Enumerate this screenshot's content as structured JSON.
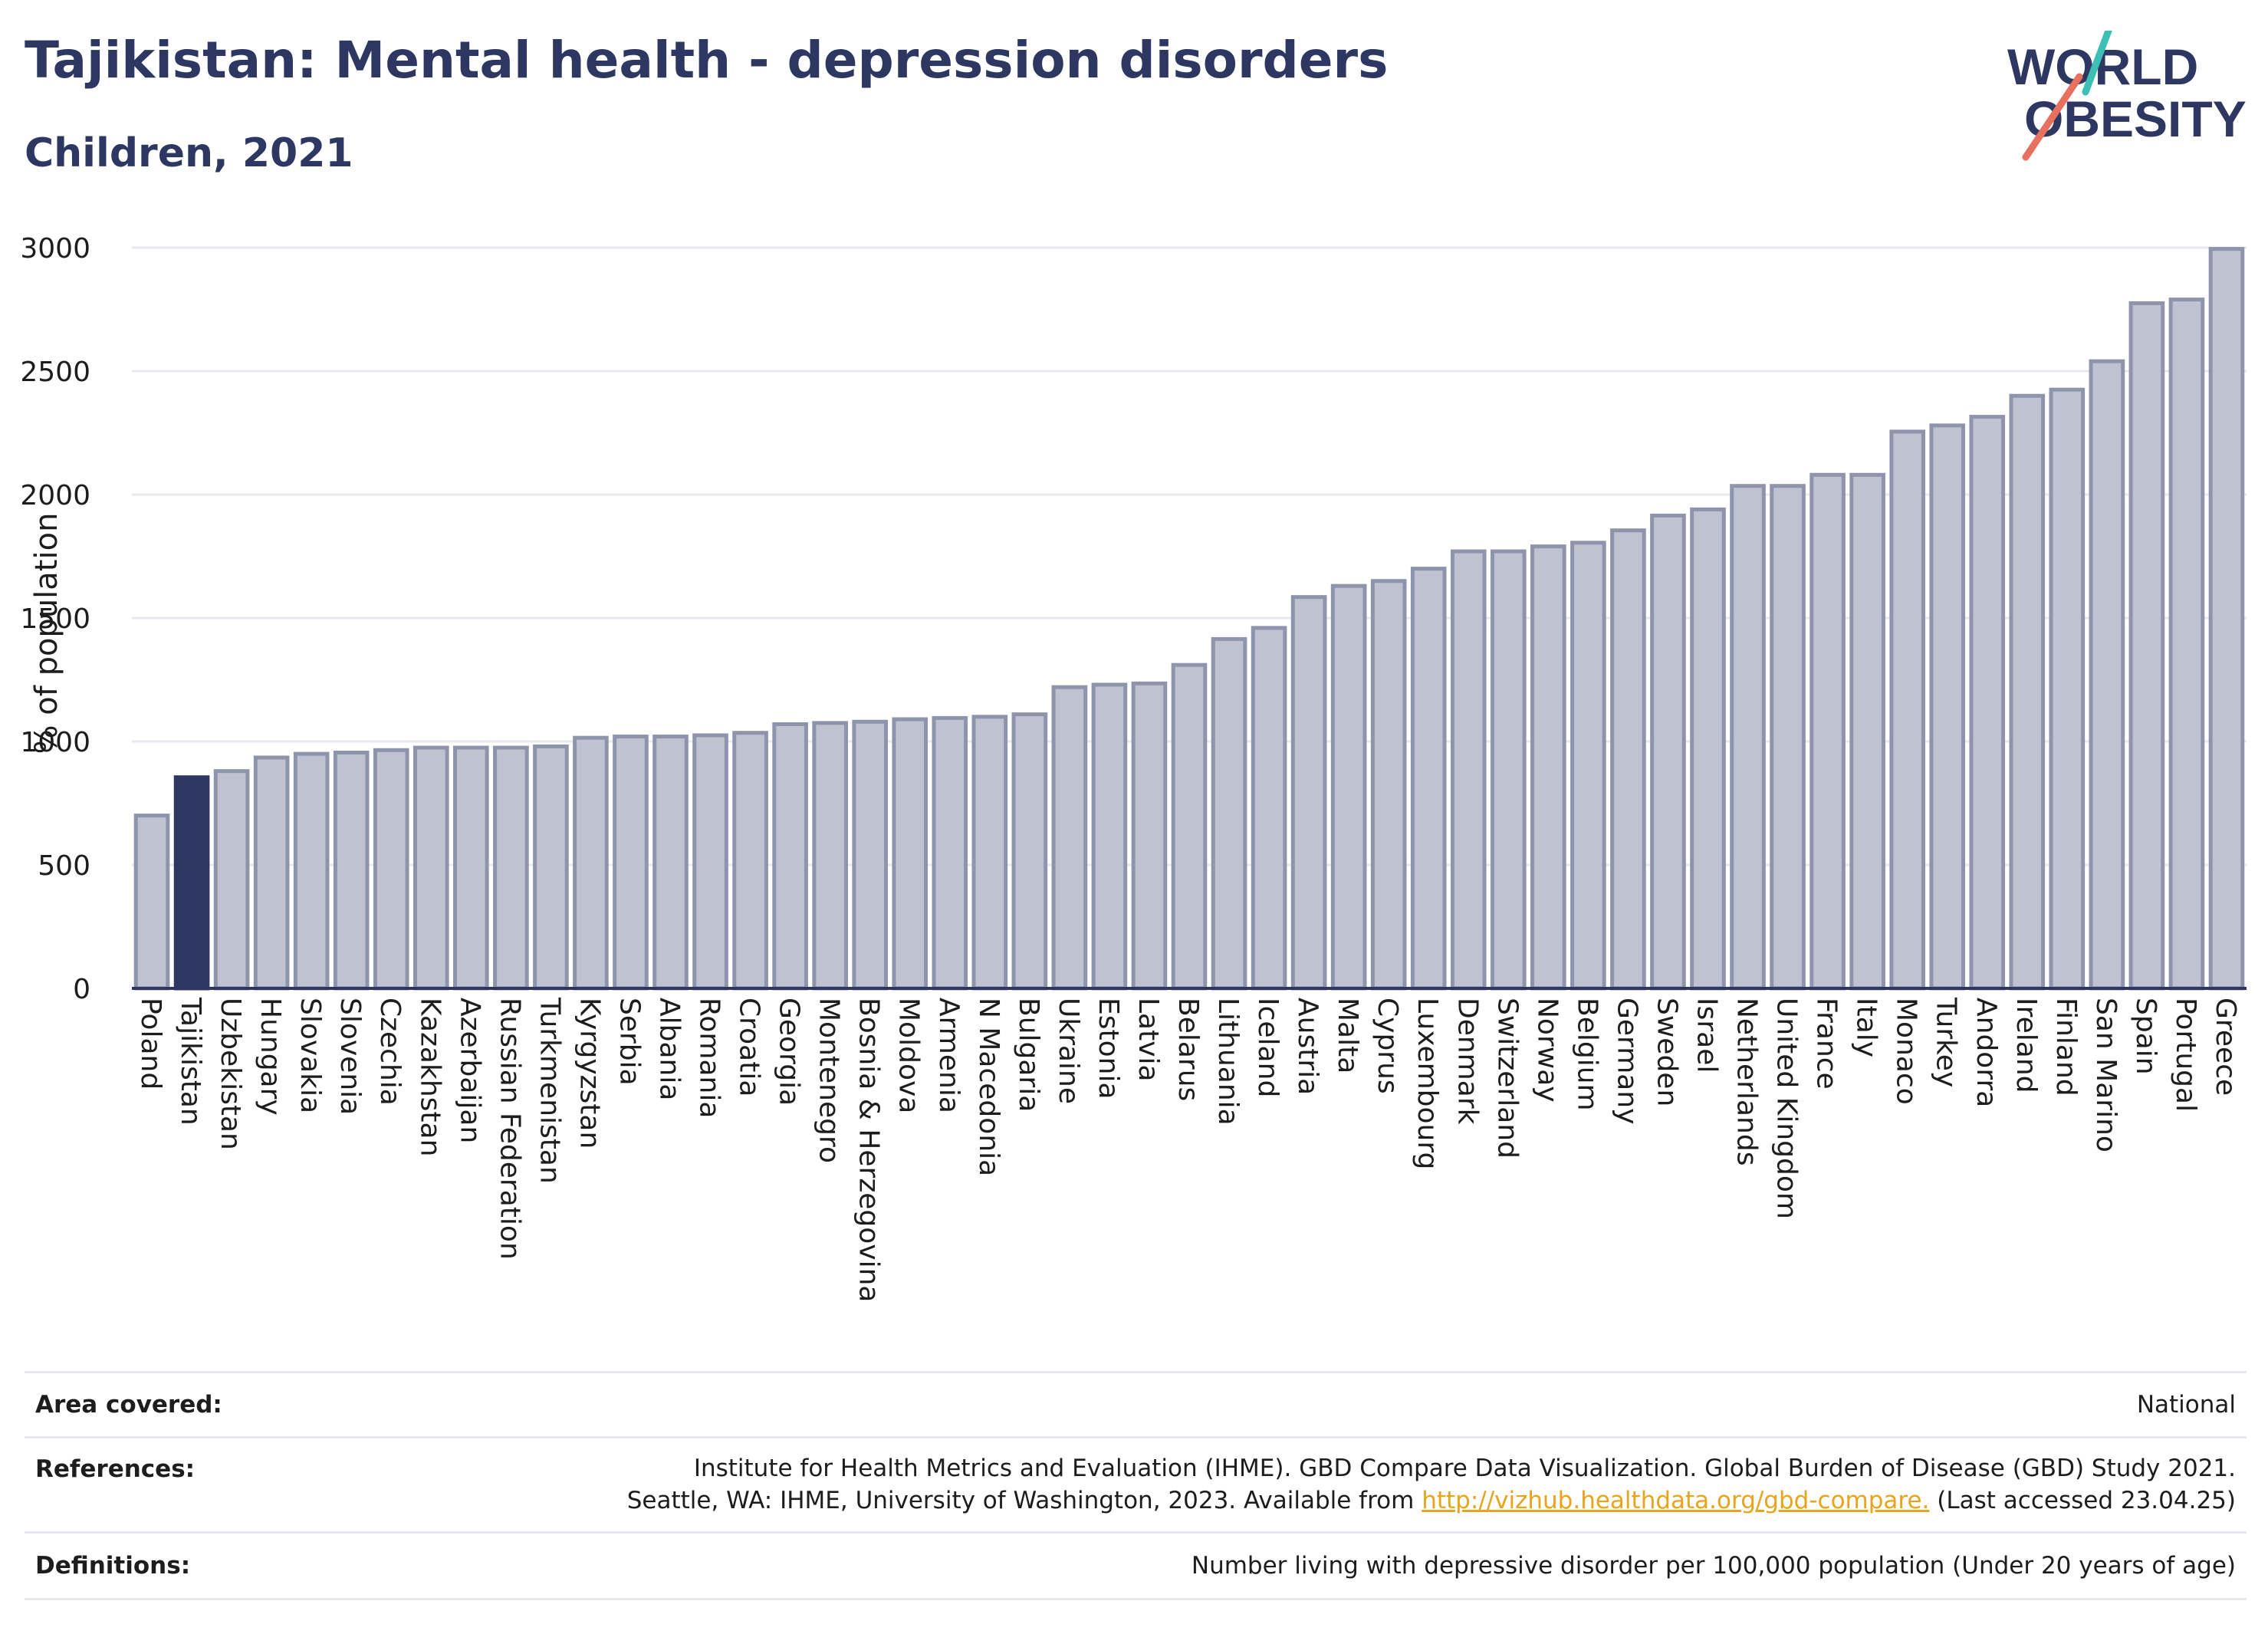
{
  "header": {
    "title": "Tajikistan: Mental health - depression disorders",
    "subtitle": "Children, 2021"
  },
  "logo": {
    "line1": "WORLD",
    "line2": "OBESITY",
    "accent_teal": "#3cbfb4",
    "accent_coral": "#e8705f",
    "text_color": "#2d3762"
  },
  "colors": {
    "bar": "#bfc2d0",
    "bar_stroke": "#8f94ad",
    "highlight": "#2d3762",
    "grid": "#e8e9ee",
    "axis": "#2d3762"
  },
  "chart_data": {
    "type": "bar",
    "title": "Tajikistan: Mental health - depression disorders",
    "subtitle": "Children, 2021",
    "ylabel": "% of population",
    "xlabel": "",
    "ylim": [
      0,
      3000
    ],
    "yticks": [
      0,
      500,
      1000,
      1500,
      2000,
      2500,
      3000
    ],
    "grid": true,
    "highlight": "Tajikistan",
    "categories": [
      "Poland",
      "Tajikistan",
      "Uzbekistan",
      "Hungary",
      "Slovakia",
      "Slovenia",
      "Czechia",
      "Kazakhstan",
      "Azerbaijan",
      "Russian Federation",
      "Turkmenistan",
      "Kyrgyzstan",
      "Serbia",
      "Albania",
      "Romania",
      "Croatia",
      "Georgia",
      "Montenegro",
      "Bosnia & Herzegovina",
      "Moldova",
      "Armenia",
      "N Macedonia",
      "Bulgaria",
      "Ukraine",
      "Estonia",
      "Latvia",
      "Belarus",
      "Lithuania",
      "Iceland",
      "Austria",
      "Malta",
      "Cyprus",
      "Luxembourg",
      "Denmark",
      "Switzerland",
      "Norway",
      "Belgium",
      "Germany",
      "Sweden",
      "Israel",
      "Netherlands",
      "United Kingdom",
      "France",
      "Italy",
      "Monaco",
      "Turkey",
      "Andorra",
      "Ireland",
      "Finland",
      "San Marino",
      "Spain",
      "Portugal",
      "Greece"
    ],
    "values": [
      700,
      855,
      880,
      935,
      950,
      955,
      965,
      975,
      975,
      975,
      980,
      1015,
      1020,
      1020,
      1025,
      1035,
      1070,
      1075,
      1080,
      1090,
      1095,
      1100,
      1110,
      1220,
      1230,
      1235,
      1310,
      1415,
      1460,
      1585,
      1630,
      1650,
      1700,
      1770,
      1770,
      1790,
      1805,
      1855,
      1915,
      1940,
      2035,
      2035,
      2080,
      2080,
      2255,
      2280,
      2315,
      2400,
      2425,
      2540,
      2775,
      2790,
      2995
    ]
  },
  "footer": {
    "area_label": "Area covered:",
    "area_value": "National",
    "references_label": "References:",
    "references_line1": "Institute for Health Metrics and Evaluation (IHME). GBD Compare Data Visualization. Global Burden of Disease (GBD) Study 2021.",
    "references_line2_prefix": "Seattle, WA: IHME, University of Washington, 2023. Available from ",
    "references_link": "http://vizhub.healthdata.org/gbd-compare.",
    "references_line2_suffix": " (Last accessed 23.04.25)",
    "definitions_label": "Definitions:",
    "definitions_value": "Number living with depressive disorder per 100,000 population (Under 20 years of age)"
  }
}
